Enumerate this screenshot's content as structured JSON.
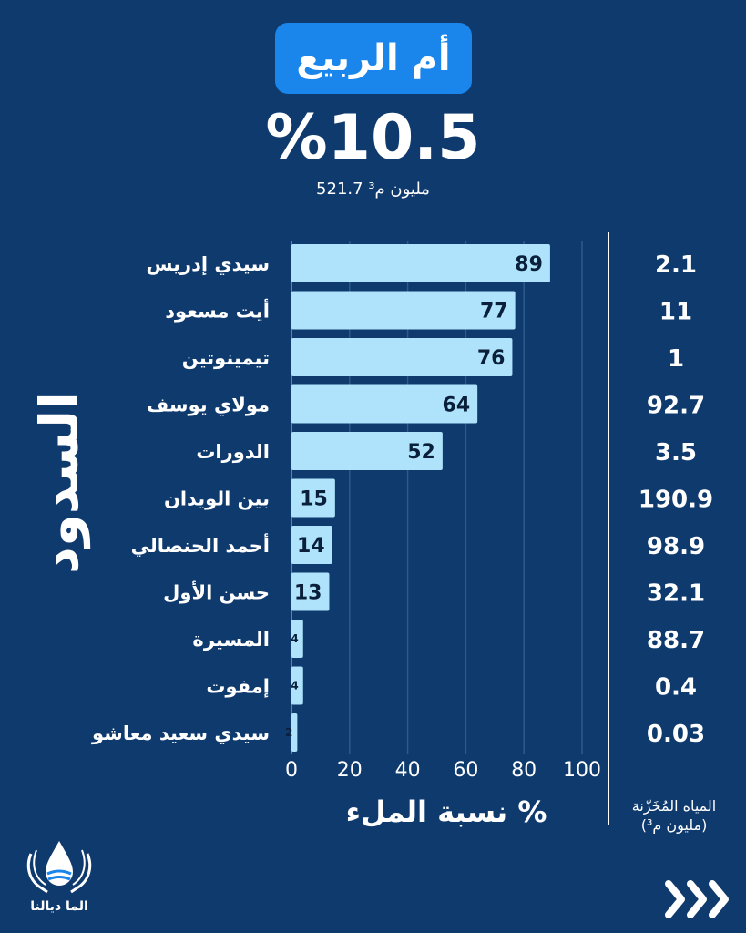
{
  "header": {
    "basin_title": "أم الربيع",
    "fill_percent": "%10.5",
    "volume": "521.7 مليون م³"
  },
  "labels": {
    "dams_title": "السدود",
    "axis_title": "نسبة الملء %",
    "stored_title_line1": "المياه المُخَزّنة",
    "stored_title_line2": "(مليون م³)",
    "logo_text": "الما ديالنا"
  },
  "colors": {
    "background": "#0f3a6e",
    "bar": "#aee3fb",
    "title_pill": "#1a86ec"
  },
  "icons": {
    "logo": "water-drop-hands-logo",
    "next": "triple-chevron-right-icon"
  },
  "chart_data": {
    "type": "bar",
    "orientation": "horizontal",
    "categories": [
      "سيدي إدريس",
      "أيت مسعود",
      "تيمينوتين",
      "مولاي يوسف",
      "الدورات",
      "بين الويدان",
      "أحمد الحنصالي",
      "حسن الأول",
      "المسيرة",
      "إمفوت",
      "سيدي سعيد معاشو"
    ],
    "values": [
      89,
      77,
      76,
      64,
      52,
      15,
      14,
      13,
      4,
      4,
      2
    ],
    "value_labels": [
      "89",
      "77",
      "76",
      "64",
      "52",
      "15",
      "14",
      "13",
      "4",
      "4",
      "2"
    ],
    "stored_water": [
      "2.1",
      "11",
      "1",
      "92.7",
      "3.5",
      "190.9",
      "98.9",
      "32.1",
      "88.7",
      "0.4",
      "0.03"
    ],
    "xticks": [
      "0",
      "20",
      "40",
      "60",
      "80",
      "100"
    ],
    "xlim": [
      0,
      100
    ],
    "xlabel": "نسبة الملء %",
    "grid": true
  }
}
